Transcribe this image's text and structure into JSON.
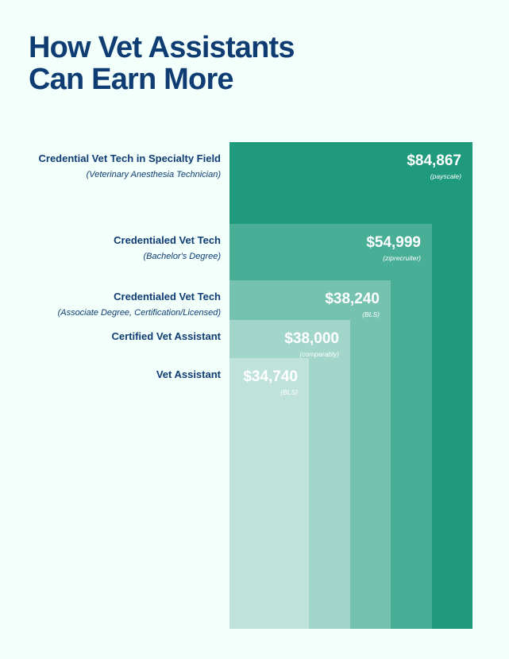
{
  "title_lines": [
    "How Vet Assistants",
    "Can Earn More"
  ],
  "chart_data": {
    "type": "bar",
    "title": "How Vet Assistants Can Earn More",
    "xlabel": "",
    "ylabel": "",
    "ylim": [
      0,
      84867
    ],
    "categories": [
      "Credential Vet Tech in Specialty Field",
      "Credentialed Vet Tech",
      "Credentialed Vet Tech",
      "Certified Vet Assistant",
      "Vet Assistant"
    ],
    "bars": [
      {
        "label": "Credential Vet Tech in Specialty Field",
        "sublabel": "(Veterinary Anesthesia Technician)",
        "value": 84867,
        "value_label": "$84,867",
        "source": "(payscale)",
        "color": "#1f9a7c"
      },
      {
        "label": "Credentialed Vet Tech",
        "sublabel": "(Bachelor's Degree)",
        "value": 54999,
        "value_label": "$54,999",
        "source": "(ziprecruiter)",
        "color": "#49ae96"
      },
      {
        "label": "Credentialed Vet Tech",
        "sublabel": "(Associate Degree, Certification/Licensed)",
        "value": 38240,
        "value_label": "$38,240",
        "source": "(BLS)",
        "color": "#76c2b0"
      },
      {
        "label": "Certified Vet Assistant",
        "sublabel": "",
        "value": 38000,
        "value_label": "$38,000",
        "source": "(comparably)",
        "color": "#a2d6ca"
      },
      {
        "label": "Vet Assistant",
        "sublabel": "",
        "value": 34740,
        "value_label": "$34,740",
        "source": "(BLS)",
        "color": "#bfe2da"
      }
    ]
  }
}
